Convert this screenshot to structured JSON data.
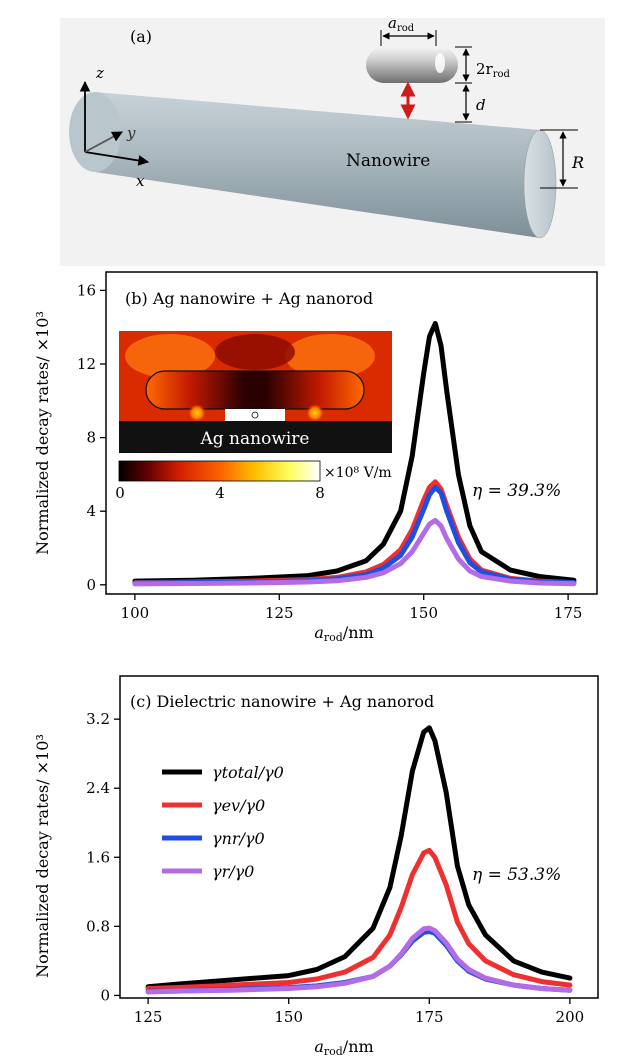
{
  "panel_a": {
    "label": "(a)",
    "nanowire_label": "Nanowire",
    "axis_z": "z",
    "axis_y": "y",
    "axis_x": "x",
    "dim_a": "a",
    "dim_a_sub": "rod",
    "dim_2r": "2r",
    "dim_2r_sub": "rod",
    "dim_d": "d",
    "dim_R": "R"
  },
  "chart_data": [
    {
      "type": "line",
      "panel_label": "(b) Ag nanowire + Ag nanorod",
      "ylabel": "Normalized decay rates/ ×10³",
      "xlabel_main": "a",
      "xlabel_sub": "rod",
      "xlabel_unit": "/nm",
      "xlim": [
        95,
        180
      ],
      "ylim": [
        -0.5,
        17
      ],
      "xticks": [
        100,
        125,
        150,
        175
      ],
      "yticks": [
        0,
        4,
        8,
        12,
        16
      ],
      "annotation": "η = 39.3%",
      "x": [
        100,
        110,
        120,
        130,
        135,
        140,
        143,
        146,
        148,
        150,
        151,
        152,
        153,
        154,
        156,
        158,
        160,
        165,
        170,
        176
      ],
      "series": [
        {
          "key": "total",
          "color": "#000000",
          "values": [
            0.2,
            0.25,
            0.35,
            0.5,
            0.75,
            1.3,
            2.2,
            4.0,
            7.0,
            11.5,
            13.5,
            14.2,
            13.0,
            10.5,
            6.0,
            3.2,
            1.8,
            0.8,
            0.45,
            0.25
          ]
        },
        {
          "key": "ev",
          "color": "#ee3030",
          "values": [
            0.12,
            0.15,
            0.2,
            0.28,
            0.4,
            0.7,
            1.1,
            1.9,
            3.0,
            4.6,
            5.3,
            5.6,
            5.2,
            4.3,
            2.6,
            1.4,
            0.8,
            0.35,
            0.2,
            0.12
          ]
        },
        {
          "key": "nr",
          "color": "#1f4fe0",
          "values": [
            0.1,
            0.12,
            0.16,
            0.22,
            0.32,
            0.55,
            0.9,
            1.6,
            2.6,
            4.1,
            4.9,
            5.3,
            5.0,
            4.0,
            2.3,
            1.2,
            0.7,
            0.3,
            0.18,
            0.12
          ]
        },
        {
          "key": "r",
          "color": "#b46be6",
          "values": [
            0.05,
            0.07,
            0.1,
            0.15,
            0.22,
            0.4,
            0.65,
            1.15,
            1.8,
            2.8,
            3.3,
            3.5,
            3.2,
            2.5,
            1.4,
            0.75,
            0.45,
            0.2,
            0.1,
            0.06
          ]
        }
      ],
      "inset": {
        "material_label": "Ag nanowire",
        "colorbar_unit": "×10⁸ V/m",
        "colorbar_ticks": [
          "0",
          "4",
          "8"
        ]
      }
    },
    {
      "type": "line",
      "panel_label": "(c) Dielectric nanowire + Ag nanorod",
      "ylabel": "Normalized decay rates/ ×10³",
      "xlabel_main": "a",
      "xlabel_sub": "rod",
      "xlabel_unit": "/nm",
      "xlim": [
        120,
        205
      ],
      "ylim": [
        -0.03,
        3.7
      ],
      "xticks": [
        125,
        150,
        175,
        200
      ],
      "yticks": [
        0,
        0.8,
        1.6,
        2.4,
        3.2
      ],
      "ytick_labels": [
        "0",
        "0.8",
        "1.6",
        "2.4",
        "3.2"
      ],
      "annotation": "η = 53.3%",
      "x": [
        125,
        130,
        140,
        150,
        155,
        160,
        165,
        168,
        170,
        172,
        174,
        175,
        176,
        178,
        180,
        182,
        185,
        190,
        195,
        200
      ],
      "series": [
        {
          "key": "total",
          "name": "γtotal/γ0",
          "color": "#000000",
          "values": [
            0.1,
            0.13,
            0.18,
            0.23,
            0.3,
            0.45,
            0.78,
            1.25,
            1.85,
            2.6,
            3.05,
            3.1,
            2.95,
            2.35,
            1.5,
            1.05,
            0.7,
            0.4,
            0.27,
            0.2
          ]
        },
        {
          "key": "ev",
          "name": "γev/γ0",
          "color": "#ee3030",
          "values": [
            0.08,
            0.09,
            0.12,
            0.15,
            0.19,
            0.27,
            0.44,
            0.7,
            1.02,
            1.4,
            1.65,
            1.68,
            1.6,
            1.28,
            0.85,
            0.6,
            0.4,
            0.24,
            0.16,
            0.12
          ]
        },
        {
          "key": "nr",
          "name": "γnr/γ0",
          "color": "#1f4fe0",
          "values": [
            0.05,
            0.05,
            0.07,
            0.09,
            0.11,
            0.15,
            0.22,
            0.34,
            0.47,
            0.63,
            0.73,
            0.74,
            0.72,
            0.58,
            0.4,
            0.28,
            0.19,
            0.12,
            0.08,
            0.06
          ]
        },
        {
          "key": "r",
          "name": "γr/γ0",
          "color": "#b46be6",
          "values": [
            0.04,
            0.05,
            0.06,
            0.08,
            0.1,
            0.14,
            0.22,
            0.34,
            0.48,
            0.66,
            0.77,
            0.78,
            0.75,
            0.61,
            0.42,
            0.3,
            0.2,
            0.12,
            0.08,
            0.06
          ]
        }
      ]
    }
  ]
}
